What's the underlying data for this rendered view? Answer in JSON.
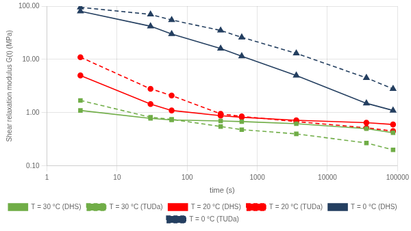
{
  "chart_data": {
    "type": "line",
    "xlabel": "time (s)",
    "ylabel": "Shear relaxation modulus G(t) (MPa)",
    "log": true,
    "grid": true,
    "legend": "bottom",
    "x": [
      3,
      30,
      60,
      300,
      600,
      3600,
      36000,
      86400
    ],
    "xlim": [
      1,
      100000
    ],
    "xticks": [
      1,
      10,
      100,
      1000,
      10000,
      100000
    ],
    "ylim": [
      0.1,
      100.0
    ],
    "yticks": [
      {
        "value": 0.1,
        "label": "0.10"
      },
      {
        "value": 1,
        "label": "1.00"
      },
      {
        "value": 10,
        "label": "10.00"
      },
      {
        "value": 100,
        "label": "100.00"
      }
    ],
    "series": [
      {
        "name": "T = 30 °C (DHS)",
        "color": "#70AD47",
        "line_style": "solid",
        "marker": "square",
        "values": [
          1.1,
          0.78,
          0.73,
          0.7,
          0.68,
          0.62,
          0.5,
          0.42
        ]
      },
      {
        "name": "T = 30 °C (TUDa)",
        "color": "#70AD47",
        "line_style": "dashed",
        "marker": "square",
        "values": [
          1.7,
          0.82,
          0.75,
          0.55,
          0.48,
          0.4,
          0.27,
          0.2
        ]
      },
      {
        "name": "T = 20 °C (DHS)",
        "color": "#FF0000",
        "line_style": "solid",
        "marker": "circle",
        "values": [
          5.0,
          1.45,
          1.1,
          0.88,
          0.82,
          0.72,
          0.65,
          0.6
        ]
      },
      {
        "name": "T = 20 °C (TUDa)",
        "color": "#FF0000",
        "line_style": "dashed",
        "marker": "circle",
        "values": [
          11.0,
          2.8,
          2.1,
          0.95,
          0.85,
          0.68,
          0.52,
          0.45
        ]
      },
      {
        "name": "T = 0 °C (DHS)",
        "color": "#243F60",
        "line_style": "solid",
        "marker": "triangle",
        "values": [
          80.0,
          42.0,
          30.0,
          16.0,
          11.5,
          5.0,
          1.5,
          1.1
        ]
      },
      {
        "name": "T = 0 °C (TUDa)",
        "color": "#243F60",
        "line_style": "dashed",
        "marker": "triangle",
        "values": [
          95.0,
          70.0,
          55.0,
          35.0,
          26.0,
          13.0,
          4.5,
          2.8
        ]
      }
    ]
  }
}
